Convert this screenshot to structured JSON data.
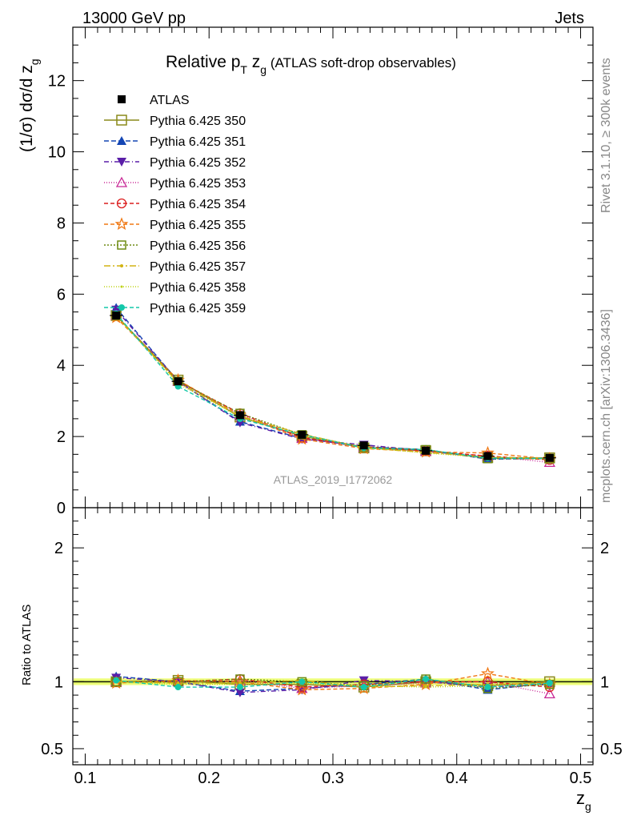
{
  "header": {
    "left": "13000 GeV pp",
    "right": "Jets",
    "side_top": "Rivet 3.1.10, ≥ 300k events",
    "side_bottom": "mcplots.cern.ch [arXiv:1306.3436]",
    "watermark": "ATLAS_2019_I1772062"
  },
  "chart_data": {
    "type": "line",
    "title_parts": {
      "main": "Relative p",
      "sub1": "T",
      "mid": " z",
      "sub2": "g",
      "rest": " (ATLAS soft-drop observables)"
    },
    "ylabel_parts": {
      "main": "(1/σ) dσ/d z",
      "sub": "g"
    },
    "ratio_ylabel": "Ratio to ATLAS",
    "xlabel_parts": {
      "main": "z",
      "sub": "g"
    },
    "xlim": [
      0.09,
      0.51
    ],
    "ylim": [
      0,
      13.5
    ],
    "ratio_ylim": [
      0.38,
      2.3
    ],
    "x_ticks": [
      0.1,
      0.2,
      0.3,
      0.4,
      0.5
    ],
    "x_tick_labels": [
      "0.1",
      "0.2",
      "0.3",
      "0.4",
      "0.5"
    ],
    "y_ticks": [
      0,
      2,
      4,
      6,
      8,
      10,
      12
    ],
    "y_tick_labels": [
      "0",
      "2",
      "4",
      "6",
      "8",
      "10",
      "12"
    ],
    "ratio_ticks": [
      0.5,
      1,
      2
    ],
    "ratio_tick_labels": [
      "0.5",
      "1",
      "2"
    ],
    "x": [
      0.125,
      0.175,
      0.225,
      0.275,
      0.325,
      0.375,
      0.425,
      0.475
    ],
    "data": {
      "name": "ATLAS",
      "values": [
        5.4,
        3.55,
        2.6,
        2.05,
        1.75,
        1.6,
        1.45,
        1.4
      ],
      "ratio_band": 0.025
    },
    "series": [
      {
        "name": "Pythia 6.425 350",
        "color": "#8a8a1a",
        "marker": "square-open",
        "dash": "",
        "ratio": [
          1.0,
          1.01,
          0.98,
          0.98,
          0.96,
          1.0,
          0.97,
          1.0
        ]
      },
      {
        "name": "Pythia 6.425 351",
        "color": "#1446b4",
        "marker": "triangle-up",
        "dash": "6,3",
        "ratio": [
          1.04,
          1.0,
          0.93,
          0.95,
          0.98,
          1.02,
          0.94,
          0.99
        ]
      },
      {
        "name": "Pythia 6.425 352",
        "color": "#5a1ea8",
        "marker": "triangle-down",
        "dash": "6,3,1,3",
        "ratio": [
          1.03,
          1.0,
          0.92,
          0.94,
          1.01,
          1.0,
          0.96,
          0.98
        ]
      },
      {
        "name": "Pythia 6.425 353",
        "color": "#c82896",
        "marker": "triangle-open",
        "dash": "1,2",
        "ratio": [
          1.0,
          1.0,
          1.01,
          0.95,
          0.97,
          0.99,
          1.0,
          0.91
        ]
      },
      {
        "name": "Pythia 6.425 354",
        "color": "#dc1e1e",
        "marker": "circle-open",
        "dash": "5,3",
        "ratio": [
          1.0,
          1.0,
          1.02,
          0.96,
          0.98,
          1.0,
          1.0,
          0.96
        ]
      },
      {
        "name": "Pythia 6.425 355",
        "color": "#f07814",
        "marker": "star-open",
        "dash": "5,3",
        "ratio": [
          0.99,
          1.01,
          1.0,
          0.94,
          0.95,
          0.98,
          1.06,
          0.98
        ]
      },
      {
        "name": "Pythia 6.425 356",
        "color": "#6e8c14",
        "marker": "square-open-small",
        "dash": "2,2",
        "ratio": [
          1.0,
          1.0,
          1.02,
          1.0,
          0.97,
          1.02,
          0.95,
          0.98
        ]
      },
      {
        "name": "Pythia 6.425 357",
        "color": "#d2b414",
        "marker": "dot",
        "dash": "8,3,2,3",
        "ratio": [
          1.0,
          0.99,
          0.99,
          1.01,
          0.96,
          0.97,
          0.98,
          0.99
        ]
      },
      {
        "name": "Pythia 6.425 358",
        "color": "#bed214",
        "marker": "dot-small",
        "dash": "1,2",
        "ratio": [
          1.0,
          0.98,
          0.98,
          0.99,
          0.97,
          0.96,
          0.97,
          0.98
        ]
      },
      {
        "name": "Pythia 6.425 359",
        "color": "#14c8aa",
        "marker": "dot-filled",
        "dash": "5,3",
        "ratio": [
          1.01,
          0.96,
          0.96,
          1.0,
          0.96,
          1.02,
          0.96,
          0.99
        ]
      }
    ]
  }
}
